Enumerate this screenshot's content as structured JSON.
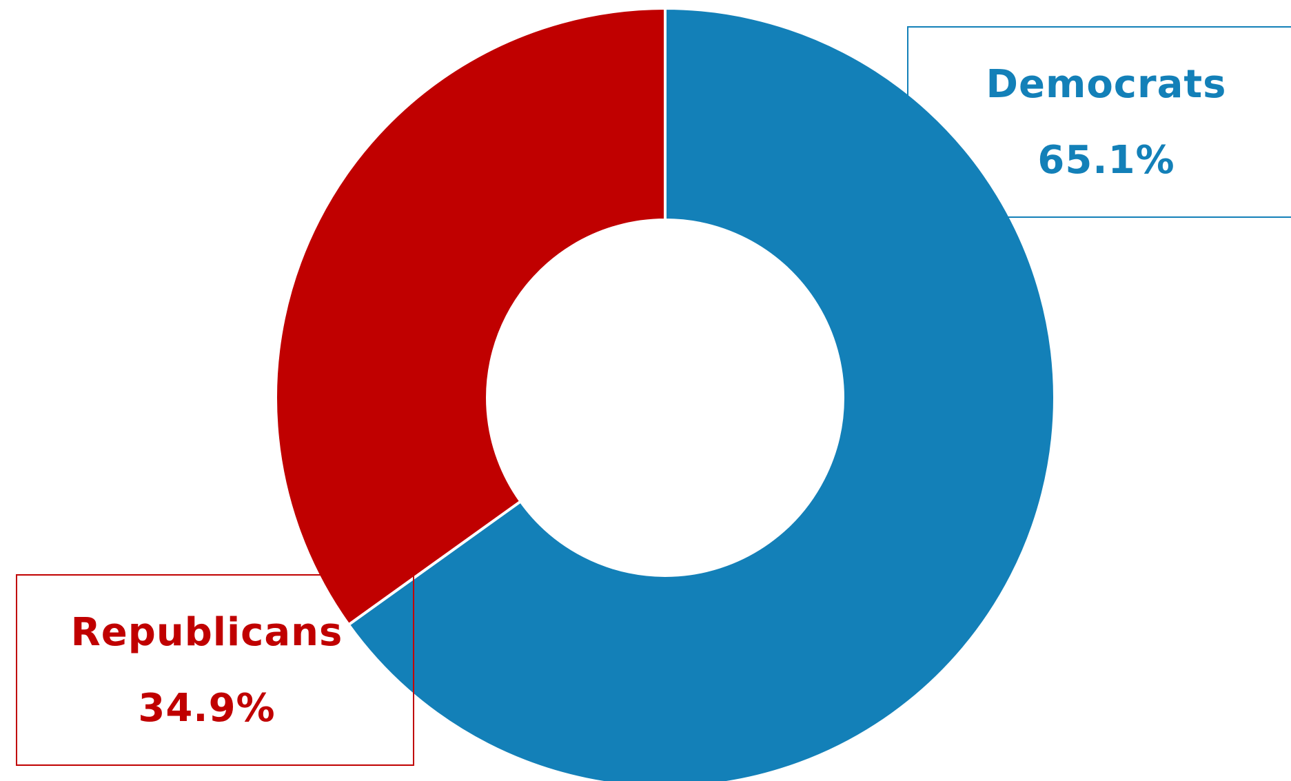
{
  "chart_data": {
    "type": "pie",
    "subtype": "donut",
    "title": "",
    "slices": [
      {
        "name": "Democrats",
        "value": 65.1,
        "label": "65.1%",
        "color": "#1380b8"
      },
      {
        "name": "Republicans",
        "value": 34.9,
        "label": "34.9%",
        "color": "#c00000"
      }
    ],
    "legend": "none",
    "start_angle": "12 o'clock, clockwise"
  },
  "labels": {
    "democrats": {
      "name": "Democrats",
      "value": "65.1%"
    },
    "republicans": {
      "name": "Republicans",
      "value": "34.9%"
    }
  }
}
